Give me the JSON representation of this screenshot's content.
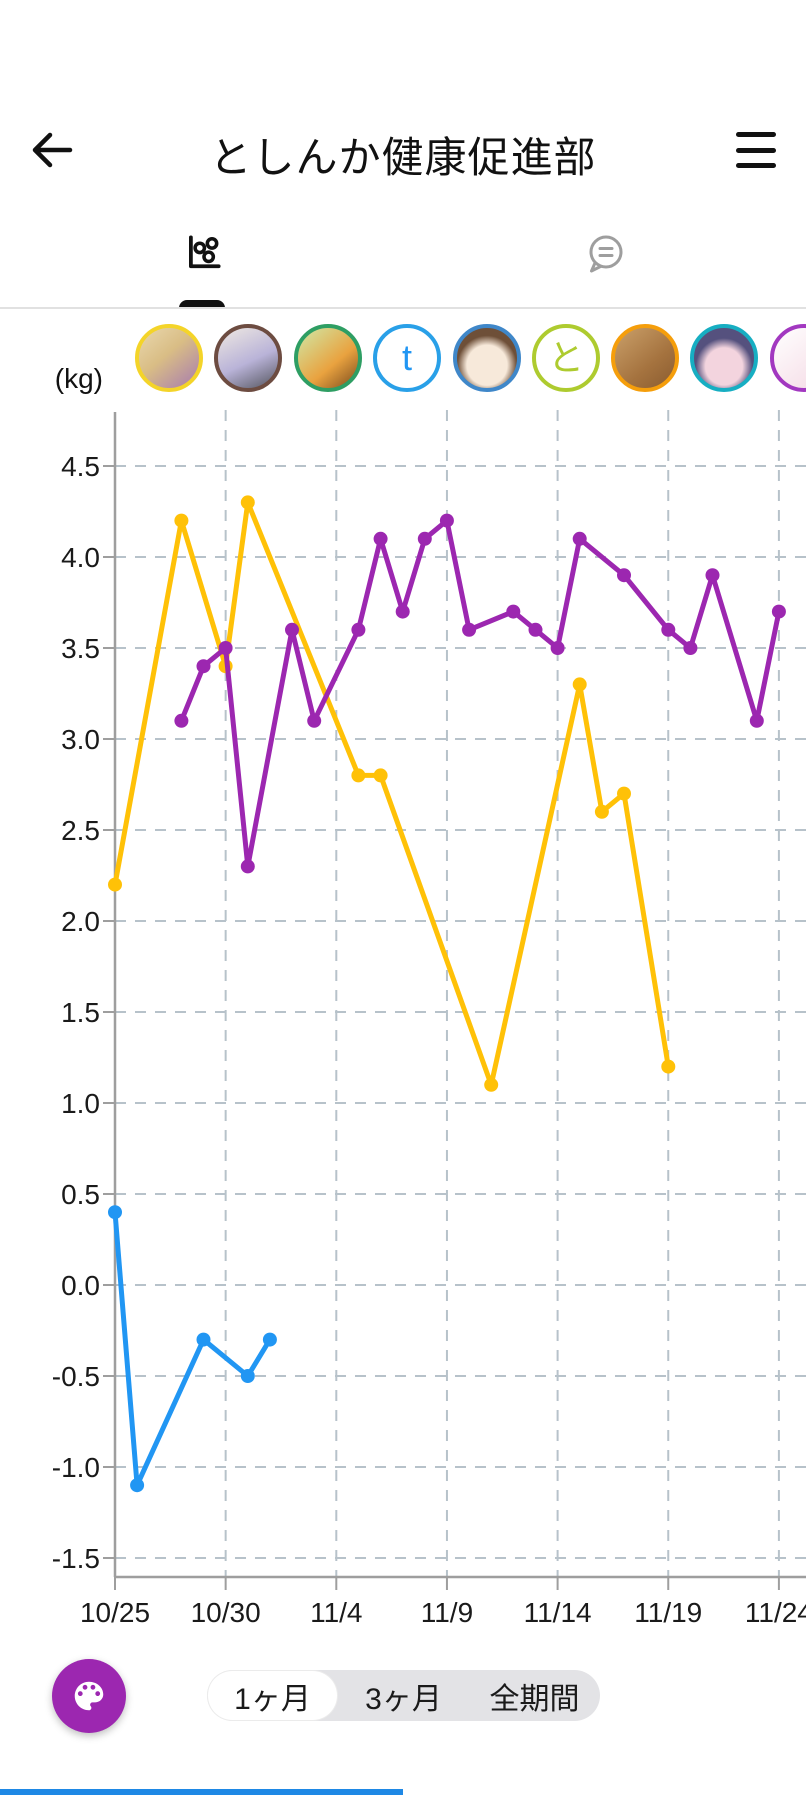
{
  "header": {
    "title": "としんか健康促進部"
  },
  "tabs": {
    "graph": "graph-tab",
    "chat": "chat-tab",
    "selected": "graph"
  },
  "unit_label": "(kg)",
  "avatars": [
    {
      "border": "#F4D429",
      "kind": "image",
      "desc": "anime-blonde-girl"
    },
    {
      "border": "#6D4C41",
      "kind": "image",
      "desc": "anime-school-girl"
    },
    {
      "border": "#2E9E63",
      "kind": "image",
      "desc": "pixel-art-character"
    },
    {
      "border": "#29A0E8",
      "kind": "letter",
      "letter": "t",
      "letter_color": "#2196F3"
    },
    {
      "border": "#3F87C9",
      "kind": "image",
      "desc": "anime-brown-hair-girl"
    },
    {
      "border": "#AECB2F",
      "kind": "letter",
      "letter": "と",
      "letter_color": "#AECB2F"
    },
    {
      "border": "#F59E0B",
      "kind": "image",
      "desc": "capybara-photo"
    },
    {
      "border": "#17AEC2",
      "kind": "image",
      "desc": "anime-purple-hair-girl"
    },
    {
      "border": "#A238C0",
      "kind": "image",
      "desc": "partial-avatar"
    }
  ],
  "chart_data": {
    "type": "line",
    "unit": "kg",
    "ylabel": "(kg)",
    "ylim": [
      -1.5,
      4.5
    ],
    "ytick_step": 0.5,
    "grid": "dashed",
    "x_ticks": [
      [
        "10/25",
        0
      ],
      [
        "10/30",
        5
      ],
      [
        "11/4",
        10
      ],
      [
        "11/9",
        15
      ],
      [
        "11/14",
        20
      ],
      [
        "11/19",
        25
      ],
      [
        "11/24",
        30
      ]
    ],
    "series": [
      {
        "name": "member-yellow",
        "color": "#FFC107",
        "points": [
          [
            "10/25",
            0,
            2.2
          ],
          [
            "10/28",
            3,
            4.2
          ],
          [
            "10/30",
            5,
            3.4
          ],
          [
            "10/31",
            6,
            4.3
          ],
          [
            "11/5",
            11,
            2.8
          ],
          [
            "11/6",
            12,
            2.8
          ],
          [
            "11/11",
            17,
            1.1
          ],
          [
            "11/15",
            21,
            3.3
          ],
          [
            "11/16",
            22,
            2.6
          ],
          [
            "11/17",
            23,
            2.7
          ],
          [
            "11/19",
            25,
            1.2
          ]
        ]
      },
      {
        "name": "member-purple",
        "color": "#9C27B0",
        "points": [
          [
            "10/28",
            3,
            3.1
          ],
          [
            "10/29",
            4,
            3.4
          ],
          [
            "10/30",
            5,
            3.5
          ],
          [
            "10/31",
            6,
            2.3
          ],
          [
            "11/2",
            8,
            3.6
          ],
          [
            "11/3",
            9,
            3.1
          ],
          [
            "11/5",
            11,
            3.6
          ],
          [
            "11/6",
            12,
            4.1
          ],
          [
            "11/7",
            13,
            3.7
          ],
          [
            "11/8",
            14,
            4.1
          ],
          [
            "11/9",
            15,
            4.2
          ],
          [
            "11/10",
            16,
            3.6
          ],
          [
            "11/12",
            18,
            3.7
          ],
          [
            "11/13",
            19,
            3.6
          ],
          [
            "11/14",
            20,
            3.5
          ],
          [
            "11/15",
            21,
            4.1
          ],
          [
            "11/17",
            23,
            3.9
          ],
          [
            "11/19",
            25,
            3.6
          ],
          [
            "11/20",
            26,
            3.5
          ],
          [
            "11/21",
            27,
            3.9
          ],
          [
            "11/23",
            29,
            3.1
          ],
          [
            "11/24",
            30,
            3.7
          ]
        ]
      },
      {
        "name": "member-blue",
        "color": "#2196F3",
        "points": [
          [
            "10/25",
            0,
            0.4
          ],
          [
            "10/26",
            1,
            -1.1
          ],
          [
            "10/29",
            4,
            -0.3
          ],
          [
            "10/31",
            6,
            -0.5
          ],
          [
            "11/1",
            7,
            -0.3
          ]
        ]
      }
    ]
  },
  "period_control": {
    "options": [
      "1ヶ月",
      "3ヶ月",
      "全期間"
    ],
    "selected_index": 0
  },
  "colors": {
    "accent_purple": "#9C27B0",
    "line_yellow": "#FFC107",
    "line_purple": "#9C27B0",
    "line_blue": "#2196F3",
    "grid": "#b7c2ca",
    "axis": "#9e9e9e",
    "bottom_bar_blue": "#1E88E5",
    "inactive_icon": "#9e9e9e"
  }
}
